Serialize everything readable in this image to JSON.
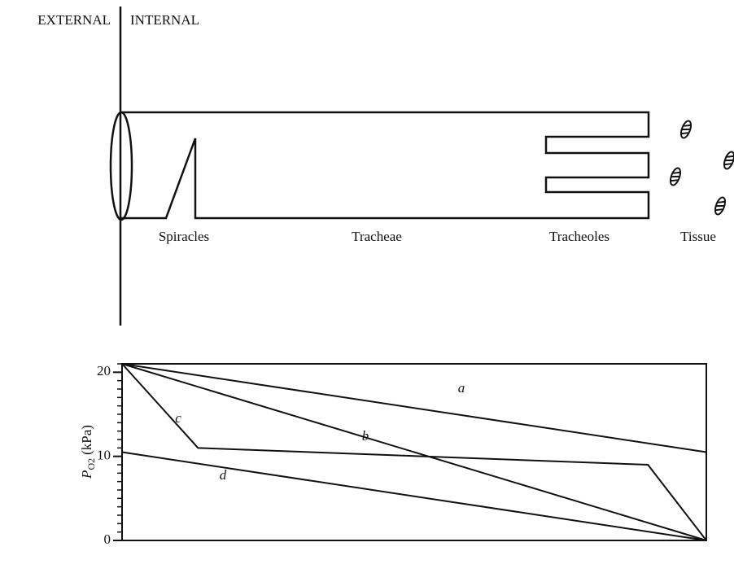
{
  "diagram": {
    "labels": {
      "external": "EXTERNAL",
      "internal": "INTERNAL",
      "spiracles": "Spiracles",
      "tracheae": "Tracheae",
      "tracheoles": "Tracheoles",
      "tissue": "Tissue"
    }
  },
  "chart_data": {
    "type": "line",
    "ylabel_symbol": "P",
    "ylabel_subscript": "O2",
    "ylabel_unit": "(kPa)",
    "xlim": [
      0,
      100
    ],
    "ylim": [
      0,
      21
    ],
    "yticks": [
      0,
      10,
      20
    ],
    "yminorticks": [
      0,
      1,
      2,
      3,
      4,
      5,
      6,
      7,
      8,
      9,
      10,
      11,
      12,
      13,
      14,
      15,
      16,
      17,
      18,
      19,
      20,
      21
    ],
    "color": "#111111",
    "series": [
      {
        "name": "a",
        "x": [
          0,
          100
        ],
        "values": [
          21,
          10.5
        ]
      },
      {
        "name": "b",
        "x": [
          0,
          100
        ],
        "values": [
          21,
          0
        ]
      },
      {
        "name": "c",
        "x": [
          0,
          13,
          90,
          100
        ],
        "values": [
          21,
          11,
          9,
          0
        ]
      },
      {
        "name": "d",
        "x": [
          0,
          100
        ],
        "values": [
          10.5,
          0
        ]
      }
    ]
  }
}
